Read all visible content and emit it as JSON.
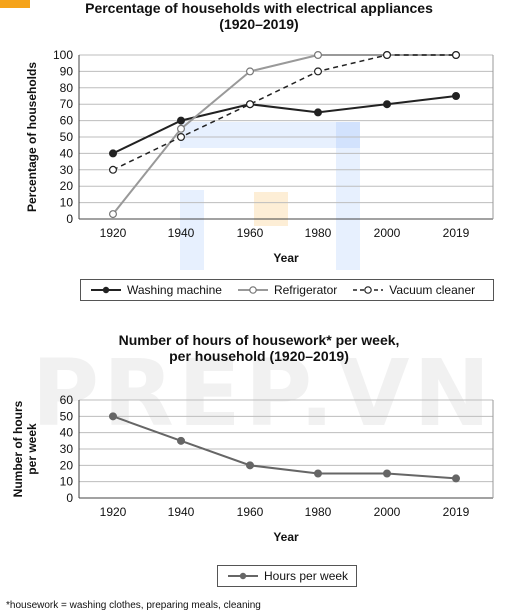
{
  "chart_data": [
    {
      "type": "line",
      "title_line1": "Percentage of households with electrical appliances",
      "title_line2": "(1920–2019)",
      "xlabel": "Year",
      "ylabel": "Percentage of households",
      "categories": [
        "1920",
        "1940",
        "1960",
        "1980",
        "2000",
        "2019"
      ],
      "yticks": [
        "0",
        "10",
        "20",
        "30",
        "40",
        "50",
        "60",
        "70",
        "80",
        "90",
        "100"
      ],
      "ylim": [
        0,
        100
      ],
      "grid": true,
      "legend_position": "bottom",
      "series": [
        {
          "name": "Washing machine",
          "values": [
            40,
            60,
            70,
            65,
            70,
            75
          ],
          "color": "#222222",
          "style": "solid-filled"
        },
        {
          "name": "Refrigerator",
          "values": [
            3,
            55,
            90,
            100,
            100,
            100
          ],
          "color": "#999999",
          "style": "solid-hollow"
        },
        {
          "name": "Vacuum cleaner",
          "values": [
            30,
            50,
            70,
            90,
            100,
            100
          ],
          "color": "#222222",
          "style": "dashed-hollow"
        }
      ]
    },
    {
      "type": "line",
      "title_line1": "Number of hours of housework* per week,",
      "title_line2": "per household (1920–2019)",
      "xlabel": "Year",
      "ylabel_line1": "Number of hours",
      "ylabel_line2": "per week",
      "categories": [
        "1920",
        "1940",
        "1960",
        "1980",
        "2000",
        "2019"
      ],
      "yticks": [
        "0",
        "10",
        "20",
        "30",
        "40",
        "50",
        "60"
      ],
      "ylim": [
        0,
        60
      ],
      "grid": true,
      "legend_position": "bottom",
      "series": [
        {
          "name": "Hours per week",
          "values": [
            50,
            35,
            20,
            15,
            15,
            12
          ],
          "color": "#666666",
          "style": "solid-filled"
        }
      ]
    }
  ],
  "footnote": "*housework = washing clothes, preparing meals, cleaning",
  "watermark": "PREP.VN"
}
